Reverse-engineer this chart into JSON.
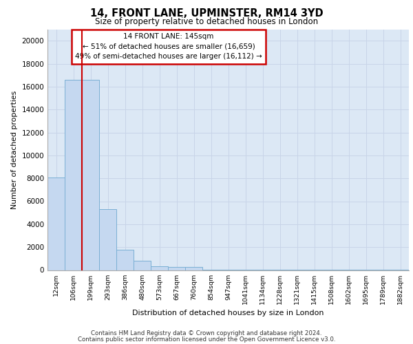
{
  "title1": "14, FRONT LANE, UPMINSTER, RM14 3YD",
  "title2": "Size of property relative to detached houses in London",
  "xlabel": "Distribution of detached houses by size in London",
  "ylabel": "Number of detached properties",
  "bar_labels": [
    "12sqm",
    "106sqm",
    "199sqm",
    "293sqm",
    "386sqm",
    "480sqm",
    "573sqm",
    "667sqm",
    "760sqm",
    "854sqm",
    "947sqm",
    "1041sqm",
    "1134sqm",
    "1228sqm",
    "1321sqm",
    "1415sqm",
    "1508sqm",
    "1602sqm",
    "1695sqm",
    "1789sqm",
    "1882sqm"
  ],
  "bar_values": [
    8100,
    16600,
    16600,
    5300,
    1800,
    800,
    350,
    300,
    300,
    50,
    50,
    30,
    20,
    15,
    10,
    8,
    6,
    5,
    4,
    3,
    2
  ],
  "bar_color": "#c5d8f0",
  "bar_edge_color": "#7aafd4",
  "vline_x": 1.5,
  "vline_color": "#cc0000",
  "annotation_title": "14 FRONT LANE: 145sqm",
  "annotation_line1": "← 51% of detached houses are smaller (16,659)",
  "annotation_line2": "49% of semi-detached houses are larger (16,112) →",
  "annotation_box_color": "#ffffff",
  "annotation_box_edge": "#cc0000",
  "grid_color": "#c8d4e8",
  "background_color": "#dce8f5",
  "footer1": "Contains HM Land Registry data © Crown copyright and database right 2024.",
  "footer2": "Contains public sector information licensed under the Open Government Licence v3.0.",
  "ylim": [
    0,
    21000
  ],
  "yticks": [
    0,
    2000,
    4000,
    6000,
    8000,
    10000,
    12000,
    14000,
    16000,
    18000,
    20000
  ]
}
